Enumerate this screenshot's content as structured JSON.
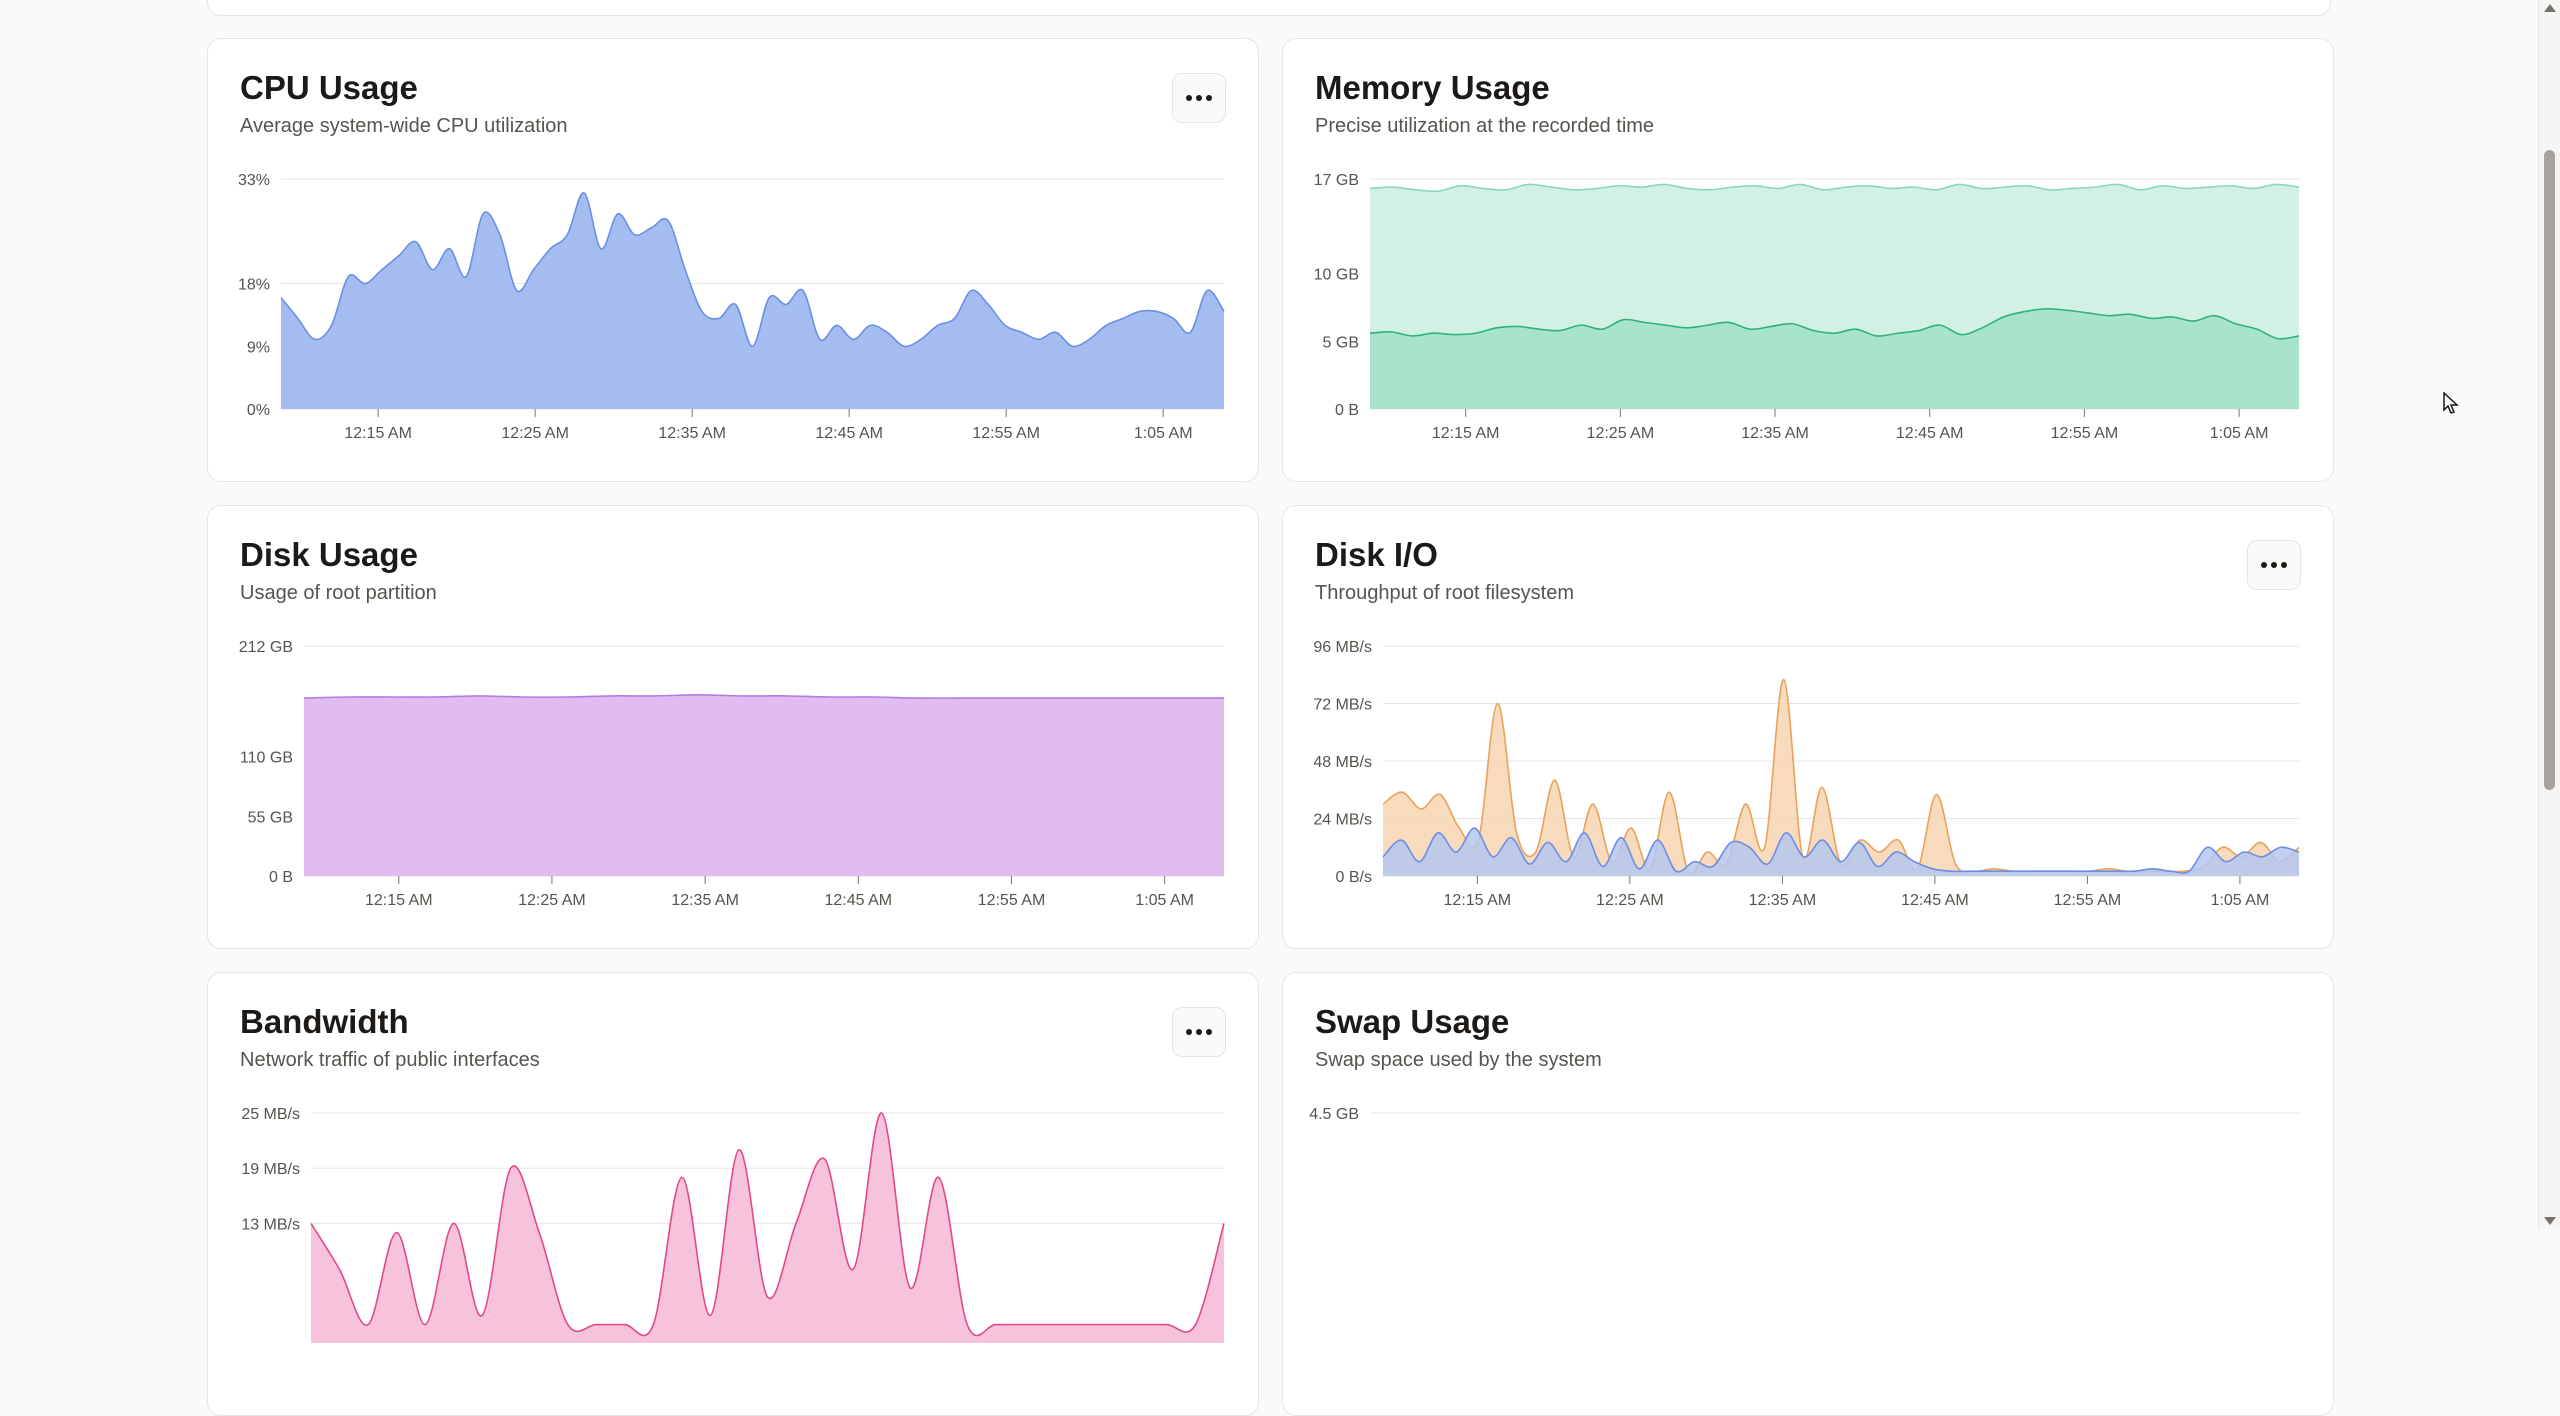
{
  "cards": {
    "cpu": {
      "title": "CPU Usage",
      "subtitle": "Average system-wide CPU utilization",
      "has_menu": true,
      "chart_data": {
        "type": "area",
        "x_ticks": [
          "12:15 AM",
          "12:25 AM",
          "12:35 AM",
          "12:45 AM",
          "12:55 AM",
          "1:05 AM"
        ],
        "y_ticks": [
          "0%",
          "9%",
          "18%",
          "33%"
        ],
        "ylim": [
          0,
          33
        ],
        "grid": true,
        "series": [
          {
            "color": "#6b8fe5",
            "fill": "#a5bcf0",
            "values": [
              16,
              13,
              10,
              12,
              19,
              18,
              20,
              22,
              24,
              20,
              23,
              19,
              28,
              25,
              17,
              20,
              23,
              25,
              31,
              23,
              28,
              25,
              26,
              27,
              20,
              14,
              13,
              15,
              9,
              16,
              15,
              17,
              10,
              12,
              10,
              12,
              11,
              9,
              10,
              12,
              13,
              17,
              15,
              12,
              11,
              10,
              11,
              9,
              10,
              12,
              13,
              14,
              14,
              13,
              11,
              17,
              14
            ]
          }
        ]
      }
    },
    "memory": {
      "title": "Memory Usage",
      "subtitle": "Precise utilization at the recorded time",
      "has_menu": false,
      "chart_data": {
        "type": "area",
        "x_ticks": [
          "12:15 AM",
          "12:25 AM",
          "12:35 AM",
          "12:45 AM",
          "12:55 AM",
          "1:05 AM"
        ],
        "y_ticks": [
          "0 B",
          "5 GB",
          "10 GB",
          "17 GB"
        ],
        "ylim": [
          0,
          17
        ],
        "grid": true,
        "series": [
          {
            "color": "#86d9b8",
            "fill": "#d3f0e4",
            "values": [
              16.3,
              16.4,
              16.2,
              16.1,
              16.5,
              16.3,
              16.2,
              16.6,
              16.4,
              16.2,
              16.3,
              16.5,
              16.4,
              16.6,
              16.3,
              16.2,
              16.4,
              16.5,
              16.3,
              16.6,
              16.2,
              16.4,
              16.5,
              16.3,
              16.4,
              16.2,
              16.6,
              16.3,
              16.4,
              16.5,
              16.2,
              16.3,
              16.4,
              16.6,
              16.2,
              16.5,
              16.3,
              16.4,
              16.5,
              16.3,
              16.6,
              16.4
            ]
          },
          {
            "color": "#2fb37c",
            "fill": "#a8e3cb",
            "values": [
              5.6,
              5.7,
              5.4,
              5.6,
              5.5,
              5.6,
              6.0,
              6.1,
              5.9,
              5.8,
              6.2,
              5.9,
              6.6,
              6.4,
              6.2,
              6.0,
              6.2,
              6.4,
              5.9,
              6.1,
              6.3,
              5.8,
              5.6,
              5.9,
              5.4,
              5.6,
              5.8,
              6.2,
              5.5,
              6.0,
              6.8,
              7.2,
              7.4,
              7.3,
              7.1,
              6.9,
              7.0,
              6.7,
              6.8,
              6.5,
              6.9,
              6.3,
              5.9,
              5.2,
              5.4
            ]
          }
        ]
      }
    },
    "disk": {
      "title": "Disk Usage",
      "subtitle": "Usage of root partition",
      "has_menu": false,
      "chart_data": {
        "type": "area",
        "x_ticks": [
          "12:15 AM",
          "12:25 AM",
          "12:35 AM",
          "12:45 AM",
          "12:55 AM",
          "1:05 AM"
        ],
        "y_ticks": [
          "0 B",
          "55 GB",
          "110 GB",
          "212 GB"
        ],
        "ylim": [
          0,
          212
        ],
        "grid": true,
        "series": [
          {
            "color": "#b07ee0",
            "fill": "#e0bcf0",
            "values": [
              164,
              165,
              165,
              165,
              166,
              165,
              165,
              166,
              166,
              167,
              166,
              166,
              165,
              165,
              164,
              164,
              164,
              164,
              164,
              164,
              164,
              164
            ]
          }
        ]
      }
    },
    "diskio": {
      "title": "Disk I/O",
      "subtitle": "Throughput of root filesystem",
      "has_menu": true,
      "chart_data": {
        "type": "area",
        "x_ticks": [
          "12:15 AM",
          "12:25 AM",
          "12:35 AM",
          "12:45 AM",
          "12:55 AM",
          "1:05 AM"
        ],
        "y_ticks": [
          "0 B/s",
          "24 MB/s",
          "48 MB/s",
          "72 MB/s",
          "96 MB/s"
        ],
        "ylim": [
          0,
          96
        ],
        "grid": true,
        "series": [
          {
            "color": "#e8a25c",
            "fill": "#f7d3b0",
            "values": [
              30,
              35,
              28,
              34,
              20,
              15,
              72,
              18,
              10,
              40,
              8,
              30,
              6,
              20,
              3,
              35,
              2,
              10,
              5,
              30,
              12,
              82,
              8,
              37,
              5,
              15,
              10,
              15,
              3,
              34,
              5,
              2,
              3,
              2,
              2,
              2,
              2,
              2,
              3,
              2,
              2,
              2,
              2,
              4,
              12,
              8,
              14,
              6,
              12
            ]
          },
          {
            "color": "#6b8fe5",
            "fill": "#b5c7f0",
            "values": [
              8,
              15,
              6,
              18,
              10,
              20,
              8,
              16,
              5,
              14,
              6,
              18,
              4,
              16,
              3,
              15,
              2,
              6,
              4,
              14,
              12,
              5,
              18,
              8,
              15,
              6,
              14,
              4,
              10,
              6,
              3,
              2,
              2,
              2,
              2,
              2,
              2,
              2,
              2,
              2,
              2,
              2,
              3,
              2,
              2,
              12,
              6,
              10,
              8,
              12,
              10
            ]
          }
        ]
      }
    },
    "bandwidth": {
      "title": "Bandwidth",
      "subtitle": "Network traffic of public interfaces",
      "has_menu": true,
      "chart_data": {
        "type": "area",
        "y_ticks": [
          "13 MB/s",
          "19 MB/s",
          "25 MB/s"
        ],
        "ylim": [
          0,
          25
        ],
        "grid": true,
        "series": [
          {
            "color": "#e2488a",
            "fill": "#f6c3da",
            "values": [
              13,
              8,
              2,
              12,
              2,
              13,
              3,
              19,
              12,
              2,
              2,
              2,
              2,
              18,
              3,
              21,
              5,
              13,
              20,
              8,
              25,
              6,
              18,
              2,
              2,
              2,
              2,
              2,
              2,
              2,
              2,
              2,
              13
            ]
          }
        ]
      }
    },
    "swap": {
      "title": "Swap Usage",
      "subtitle": "Swap space used by the system",
      "has_menu": false,
      "chart_data": {
        "type": "area",
        "y_ticks": [
          "4.5 GB"
        ],
        "grid": true,
        "series": []
      }
    }
  }
}
